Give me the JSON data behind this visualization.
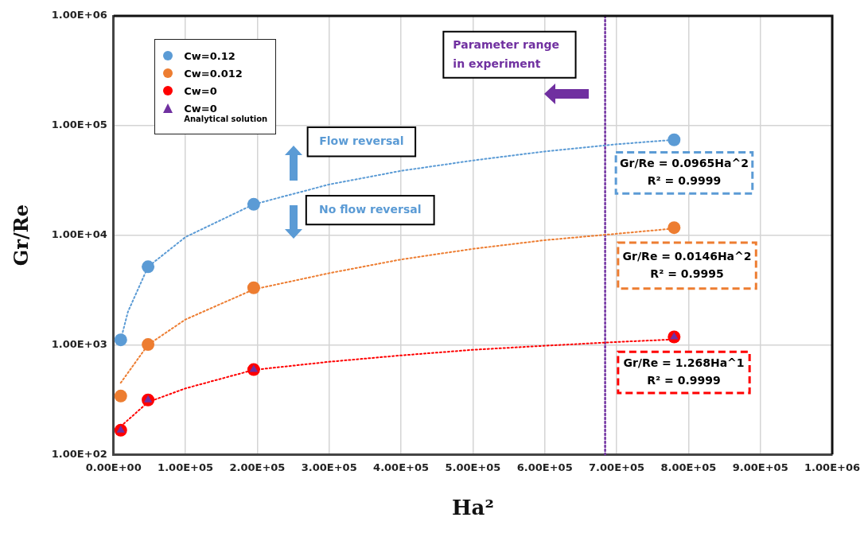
{
  "chart_data": {
    "type": "scatter",
    "xlabel": "Ha²",
    "ylabel": "Gr/Re",
    "log": "y",
    "grid": true,
    "legend": "top left",
    "xlim": [
      0,
      1000000
    ],
    "ylim": [
      100,
      1000000
    ],
    "xticks": [
      {
        "value": 0,
        "label": "0.00E+00"
      },
      {
        "value": 100000,
        "label": "1.00E+05"
      },
      {
        "value": 200000,
        "label": "2.00E+05"
      },
      {
        "value": 300000,
        "label": "3.00E+05"
      },
      {
        "value": 400000,
        "label": "4.00E+05"
      },
      {
        "value": 500000,
        "label": "5.00E+05"
      },
      {
        "value": 600000,
        "label": "6.00E+05"
      },
      {
        "value": 700000,
        "label": "7.00E+05"
      },
      {
        "value": 800000,
        "label": "8.00E+05"
      },
      {
        "value": 900000,
        "label": "9.00E+05"
      },
      {
        "value": 1000000,
        "label": "1.00E+06"
      }
    ],
    "yticks": [
      {
        "value": 100,
        "label": "1.00E+02"
      },
      {
        "value": 1000,
        "label": "1.00E+03"
      },
      {
        "value": 10000,
        "label": "1.00E+04"
      },
      {
        "value": 100000,
        "label": "1.00E+05"
      },
      {
        "value": 1000000,
        "label": "1.00E+06"
      }
    ],
    "series": [
      {
        "name": "Cw=0.12",
        "marker": "circle",
        "color": "#5b9bd5",
        "x": [
          10000,
          48000,
          195000,
          780000
        ],
        "values": [
          1110,
          5150,
          19100,
          74100
        ]
      },
      {
        "name": "Cw=0.012",
        "marker": "circle",
        "color": "#ed7d31",
        "x": [
          10000,
          48000,
          195000,
          780000
        ],
        "values": [
          341,
          1005,
          3310,
          11700
        ]
      },
      {
        "name": "Cw=0",
        "marker": "circle",
        "color": "#ff0000",
        "x": [
          10000,
          48000,
          195000,
          780000
        ],
        "values": [
          166,
          314,
          594,
          1180
        ]
      },
      {
        "name": "Cw=0\nAnalytical solution",
        "marker": "triangle",
        "color": "#7030a0",
        "x": [
          10000,
          48000,
          195000,
          780000
        ],
        "values": [
          166,
          314,
          594,
          1180
        ]
      },
      {
        "type": "line",
        "marker": "none",
        "line_style": "dotted",
        "color": "#5b9bd5",
        "x": [
          10000,
          20000,
          48000,
          100000,
          195000,
          300000,
          400000,
          500000,
          600000,
          700000,
          780000
        ],
        "values": [
          1110,
          2000,
          5150,
          9600,
          19100,
          29000,
          38600,
          48000,
          58000,
          67500,
          74100
        ]
      },
      {
        "type": "line",
        "marker": "none",
        "line_style": "dotted",
        "color": "#ed7d31",
        "x": [
          10000,
          48000,
          100000,
          195000,
          300000,
          400000,
          500000,
          600000,
          700000,
          780000
        ],
        "values": [
          450,
          1000,
          1700,
          3200,
          4500,
          6000,
          7500,
          9000,
          10300,
          11500
        ]
      },
      {
        "type": "line",
        "marker": "none",
        "line_style": "dotted",
        "color": "#ff0000",
        "x": [
          10000,
          48000,
          100000,
          195000,
          300000,
          400000,
          500000,
          600000,
          700000,
          780000
        ],
        "values": [
          180,
          300,
          400,
          590,
          700,
          800,
          900,
          980,
          1060,
          1120
        ]
      }
    ],
    "ref_lines": [
      {
        "axis": "x",
        "value": 684000,
        "label": "Parameter range\nin experiment",
        "color": "#7030a0",
        "line_style": "dotted"
      }
    ],
    "annotations": [
      "Flow reversal",
      "No flow reversal",
      "Gr/Re = 0.0965Ha^2\nR² = 0.9999",
      "Gr/Re = 0.0146Ha^2\nR² = 0.9995",
      "Gr/Re = 1.268Ha^1\nR² = 0.9999"
    ]
  }
}
